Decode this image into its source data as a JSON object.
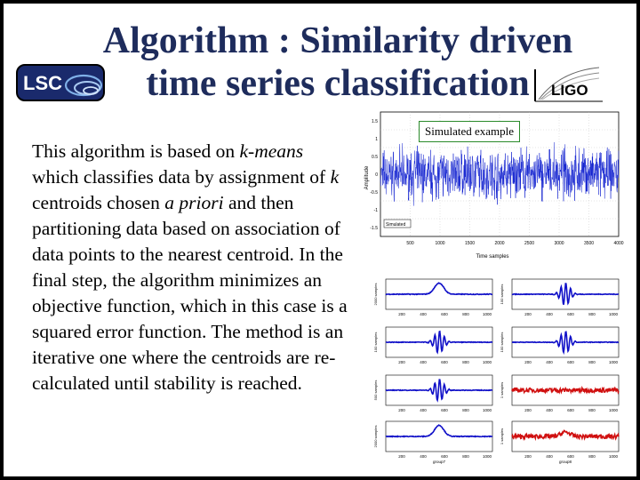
{
  "title": {
    "line1": "Algorithm : Similarity driven",
    "line2": "time series classification"
  },
  "logos": {
    "lsc_text": "LSC",
    "ligo_text": "LIGO"
  },
  "body": {
    "p1_a": "This algorithm is based on ",
    "p1_k_means": "k-means",
    "p1_b": " which classifies data by assignment of ",
    "p1_k": "k",
    "p1_c": " centroids chosen ",
    "p1_apriori": "a priori",
    "p1_d": " and then partitioning data based on association of data points to the nearest centroid. In the final step, the algorithm minimizes an objective function, which in this case is a squared error function. The method is an iterative one where the centroids are re-calculated until stability is reached."
  },
  "main_plot": {
    "label": "Simulated example",
    "xlabel": "Time samples",
    "ylabel": "Amplitude",
    "xticks": [
      "500",
      "1000",
      "1500",
      "2000",
      "2500",
      "3000",
      "3500",
      "4000"
    ],
    "yticks": [
      "1.5",
      "1",
      "0.5",
      "0",
      "-0.5",
      "-1",
      "-1.5"
    ],
    "legend": "Simulated"
  },
  "panels": [
    {
      "ylabel": "2000 samples",
      "xlabel": "",
      "color": "#1010c8",
      "kind": "pulse"
    },
    {
      "ylabel": "100 samples",
      "xlabel": "",
      "color": "#1010c8",
      "kind": "sine"
    },
    {
      "ylabel": "100 samples",
      "xlabel": "",
      "color": "#1010c8",
      "kind": "sine"
    },
    {
      "ylabel": "100 samples",
      "xlabel": "",
      "color": "#1010c8",
      "kind": "sine"
    },
    {
      "ylabel": "500 samples",
      "xlabel": "",
      "color": "#1010c8",
      "kind": "sine"
    },
    {
      "ylabel": "1 samples",
      "xlabel": "",
      "color": "#d01010",
      "kind": "noise"
    },
    {
      "ylabel": "2000 samples",
      "xlabel": "group7",
      "color": "#1010c8",
      "kind": "pulse"
    },
    {
      "ylabel": "1 samples",
      "xlabel": "group8",
      "color": "#d01010",
      "kind": "noise-pulse"
    }
  ],
  "panel_xticks": [
    "200",
    "400",
    "600",
    "800",
    "1000"
  ]
}
